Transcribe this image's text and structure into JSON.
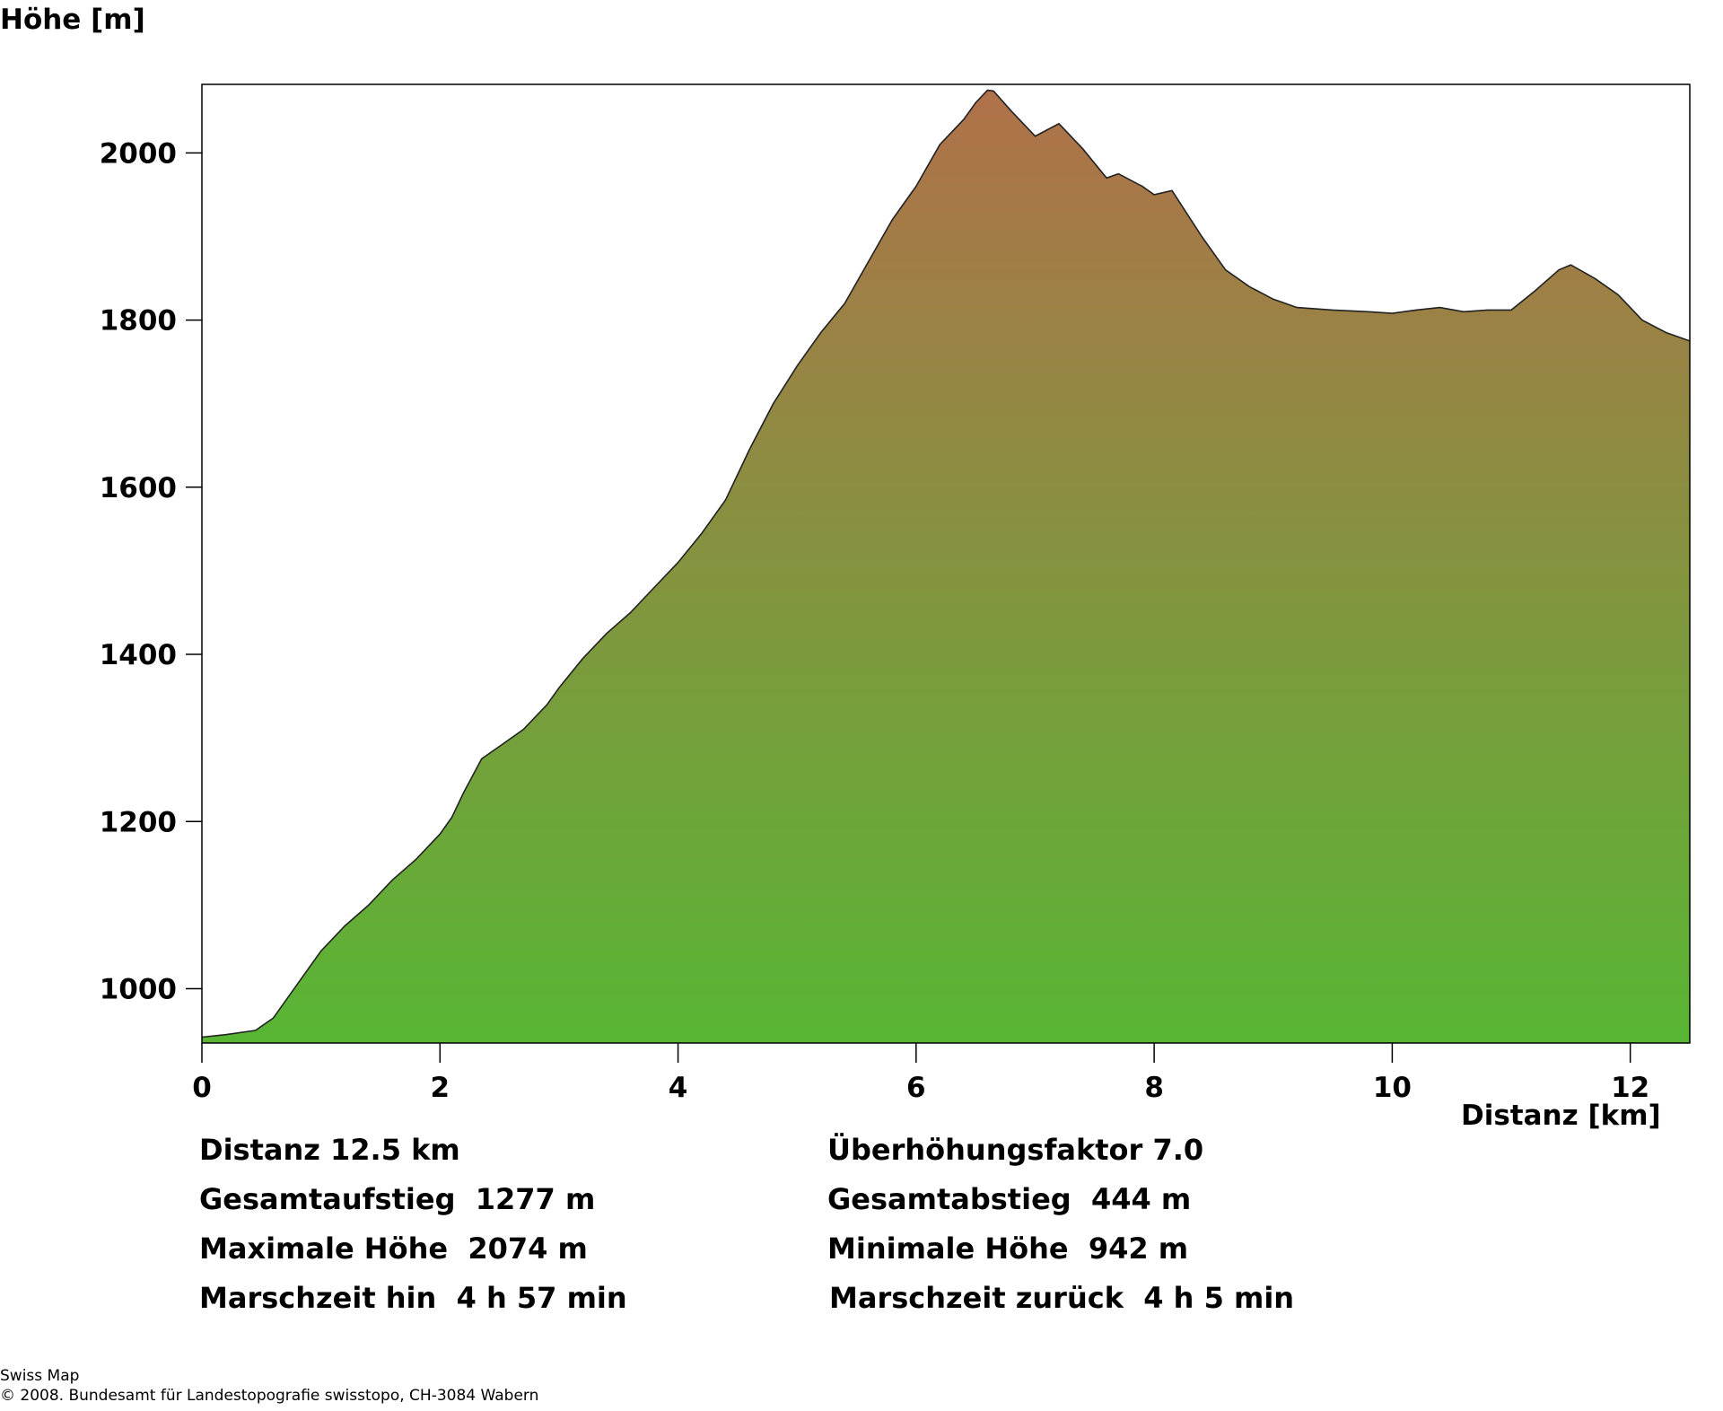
{
  "chart_data": {
    "type": "area",
    "ylabel": "Höhe [m]",
    "xlabel": "Distanz [km]",
    "xlim": [
      0,
      12.5
    ],
    "ylim": [
      935,
      2017
    ],
    "xticks": [
      0,
      2,
      4,
      6,
      8,
      10,
      12
    ],
    "yticks": [
      1000,
      1200,
      1400,
      1600,
      1800,
      2000
    ],
    "fill_gradient": {
      "top": "#b0714a",
      "bottom": "#58b634"
    },
    "x": [
      0,
      0.2,
      0.45,
      0.6,
      0.8,
      1.0,
      1.2,
      1.4,
      1.6,
      1.8,
      2.0,
      2.1,
      2.2,
      2.35,
      2.5,
      2.7,
      2.9,
      3.0,
      3.2,
      3.4,
      3.6,
      3.8,
      4.0,
      4.2,
      4.4,
      4.6,
      4.8,
      5.0,
      5.2,
      5.4,
      5.6,
      5.8,
      6.0,
      6.2,
      6.4,
      6.5,
      6.6,
      6.65,
      6.8,
      7.0,
      7.2,
      7.4,
      7.6,
      7.7,
      7.9,
      8.0,
      8.15,
      8.4,
      8.6,
      8.8,
      9.0,
      9.2,
      9.5,
      9.8,
      10.0,
      10.2,
      10.4,
      10.6,
      10.8,
      11.0,
      11.2,
      11.4,
      11.5,
      11.7,
      11.9,
      12.1,
      12.3,
      12.5
    ],
    "y": [
      942,
      945,
      950,
      965,
      1005,
      1045,
      1075,
      1100,
      1130,
      1155,
      1185,
      1205,
      1235,
      1275,
      1290,
      1310,
      1340,
      1360,
      1395,
      1425,
      1450,
      1480,
      1510,
      1545,
      1585,
      1645,
      1700,
      1745,
      1785,
      1820,
      1870,
      1920,
      1960,
      2010,
      2040,
      2060,
      2075,
      2074,
      2050,
      2020,
      2035,
      2005,
      1970,
      1975,
      1960,
      1950,
      1955,
      1900,
      1860,
      1840,
      1825,
      1815,
      1812,
      1810,
      1808,
      1812,
      1815,
      1810,
      1812,
      1812,
      1835,
      1860,
      1866,
      1850,
      1830,
      1800,
      1785,
      1775
    ]
  },
  "stats": {
    "left": [
      "Distanz 12.5 km",
      "Gesamtaufstieg  1277 m",
      "Maximale Höhe  2074 m",
      "Marschzeit hin  4 h 57 min"
    ],
    "right": [
      "Überhöhungsfaktor 7.0",
      "Gesamtabstieg  444 m",
      "Minimale Höhe  942 m",
      "Marschzeit zurück  4 h 5 min"
    ]
  },
  "footer": {
    "line1": "Swiss Map",
    "line2": "© 2008. Bundesamt für Landestopografie swisstopo, CH-3084 Wabern"
  }
}
